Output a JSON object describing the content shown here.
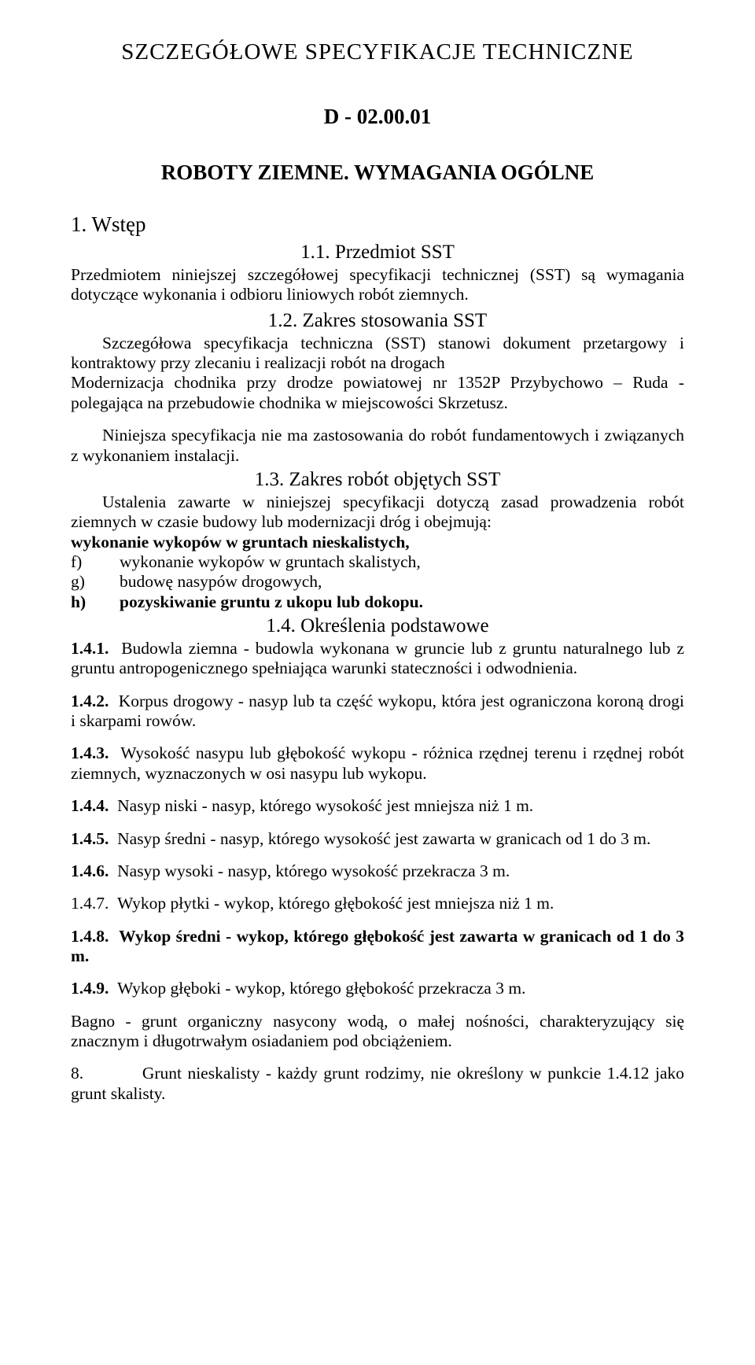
{
  "title_main": "SZCZEGÓŁOWE  SPECYFIKACJE TECHNICZNE",
  "doc_code": "D - 02.00.01",
  "doc_subject": "ROBOTY ZIEMNE. WYMAGANIA OGÓLNE",
  "section1": {
    "heading": "1. Wstęp",
    "s11": {
      "heading": "1.1. Przedmiot SST",
      "body": "Przedmiotem niniejszej szczegółowej specyfikacji technicznej (SST) są wymagania dotyczące wykonania i odbioru liniowych robót ziemnych."
    },
    "s12": {
      "heading": "1.2. Zakres stosowania SST",
      "body1": "Szczegółowa specyfikacja techniczna (SST) stanowi dokument przetargowy i kontraktowy przy zlecaniu i realizacji robót na drogach",
      "body2": "Modernizacja chodnika przy drodze powiatowej nr 1352P Przybychowo – Ruda -polegająca na przebudowie chodnika w miejscowości Skrzetusz.",
      "body3": "Niniejsza specyfikacja nie ma zastosowania do robót fundamentowych i związanych z wykonaniem instalacji."
    },
    "s13": {
      "heading": "1.3. Zakres robót objętych SST",
      "body": "Ustalenia zawarte w niniejszej specyfikacji dotyczą zasad prowadzenia robót ziemnych w czasie budowy lub modernizacji dróg i obejmują:",
      "bullet_bold": "wykonanie wykopów w gruntach nieskalistych,",
      "items": [
        {
          "letter": "f)",
          "text": "wykonanie wykopów w gruntach skalistych,"
        },
        {
          "letter": "g)",
          "text": "budowę nasypów drogowych,"
        },
        {
          "letter": "h)",
          "text": "pozyskiwanie gruntu z ukopu lub dokopu.",
          "bold": true
        }
      ]
    },
    "s14": {
      "heading": "1.4. Określenia podstawowe",
      "d141_lead": "1.4.1.",
      "d141": "Budowla ziemna - budowla wykonana w gruncie lub z gruntu naturalnego lub z gruntu antropogenicznego spełniająca warunki stateczności i odwodnienia.",
      "d142_lead": "1.4.2.",
      "d142": "Korpus drogowy - nasyp lub ta część wykopu, która jest ograniczona koroną drogi i skarpami rowów.",
      "d143_lead": "1.4.3.",
      "d143": "Wysokość nasypu lub głębokość wykopu - różnica rzędnej terenu i rzędnej robót ziemnych, wyznaczonych w osi nasypu lub wykopu.",
      "d144_lead": "1.4.4.",
      "d144": "Nasyp niski - nasyp, którego wysokość jest mniejsza niż 1 m.",
      "d145_lead": "1.4.5.",
      "d145": "Nasyp średni - nasyp, którego wysokość jest zawarta w granicach od 1 do 3 m.",
      "d146_lead": "1.4.6.",
      "d146": "Nasyp wysoki - nasyp, którego wysokość przekracza 3 m.",
      "d147_lead": "1.4.7.",
      "d147": "Wykop płytki - wykop, którego głębokość jest mniejsza niż 1 m.",
      "d148_lead": "1.4.8.",
      "d148_a": "Wykop średni - wykop, którego głębokość jest zawarta w granicach od 1 do 3 m.",
      "d149_lead": "1.4.9.",
      "d149": "Wykop głęboki - wykop, którego głębokość przekracza 3 m.",
      "bagno": "Bagno - grunt organiczny nasycony wodą, o małej nośności, charakteryzujący się znacznym i długotrwałym osiadaniem pod obciążeniem.",
      "item8_lead": "8.",
      "item8": "Grunt nieskalisty - każdy grunt rodzimy, nie określony w punkcie 1.4.12 jako grunt skalisty."
    }
  }
}
